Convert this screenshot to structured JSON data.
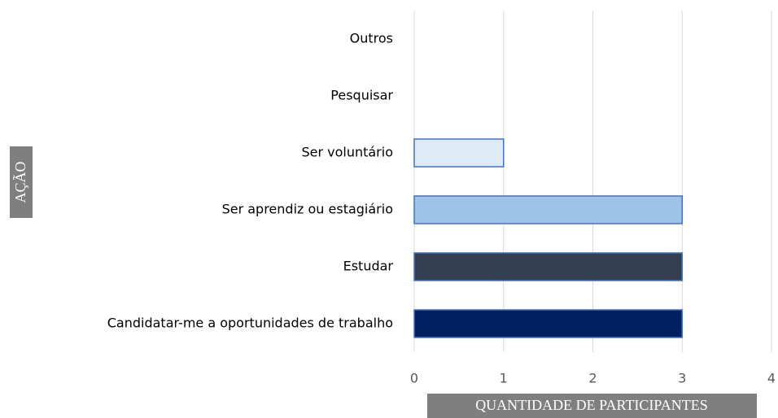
{
  "chart_data": {
    "type": "bar",
    "orientation": "horizontal",
    "categories": [
      "Outros",
      "Pesquisar",
      "Ser voluntário",
      "Ser aprendiz ou estagiário",
      "Estudar",
      "Candidatar-me a oportunidades de trabalho"
    ],
    "values": [
      0,
      0,
      1,
      3,
      3,
      3
    ],
    "colors": [
      null,
      null,
      "#deebf7",
      "#9dc3e6",
      "#333f50",
      "#002060"
    ],
    "edge_color": "#4472c4",
    "xlim": [
      0,
      4
    ],
    "xticks": [
      0,
      1,
      2,
      3,
      4
    ],
    "grid": true,
    "xlabel": "QUANTIDADE DE PARTICIPANTES",
    "ylabel": "AÇÃO"
  }
}
